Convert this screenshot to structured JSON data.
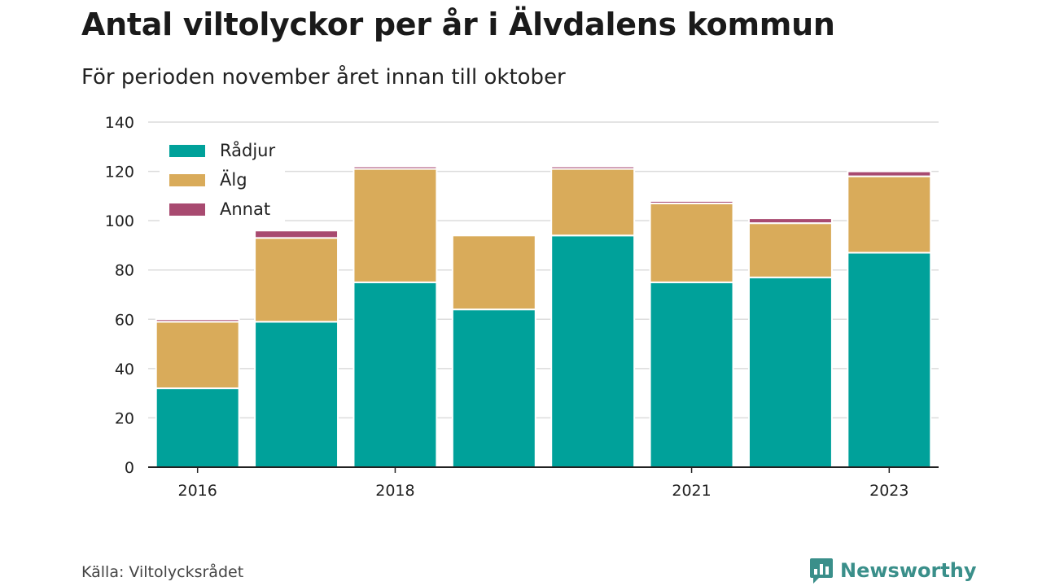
{
  "title": "Antal viltolyckor per år i Älvdalens kommun",
  "subtitle": "För perioden november året innan till oktober",
  "source": "Källa: Viltolycksrådet",
  "brand": {
    "name": "Newsworthy",
    "icon": "newsworthy-logo-icon",
    "color": "#3a8f8a"
  },
  "chart_data": {
    "type": "bar",
    "stacked": true,
    "categories": [
      "2016",
      "2017",
      "2018",
      "2019",
      "2020",
      "2021",
      "2022",
      "2023"
    ],
    "x_tick_labels": [
      "2016",
      "",
      "2018",
      "",
      "",
      "2021",
      "",
      "2023"
    ],
    "series": [
      {
        "name": "Rådjur",
        "color": "#00a19a",
        "values": [
          32,
          59,
          75,
          64,
          94,
          75,
          77,
          87
        ]
      },
      {
        "name": "Älg",
        "color": "#d9ab5a",
        "values": [
          27,
          34,
          46,
          30,
          27,
          32,
          22,
          31
        ]
      },
      {
        "name": "Annat",
        "color": "#a84a70",
        "values": [
          1,
          3,
          1,
          0,
          1,
          1,
          2,
          2
        ]
      }
    ],
    "ylim": [
      0,
      140
    ],
    "yticks": [
      0,
      20,
      40,
      60,
      80,
      100,
      120,
      140
    ],
    "grid": true,
    "legend_position": "top-left"
  }
}
